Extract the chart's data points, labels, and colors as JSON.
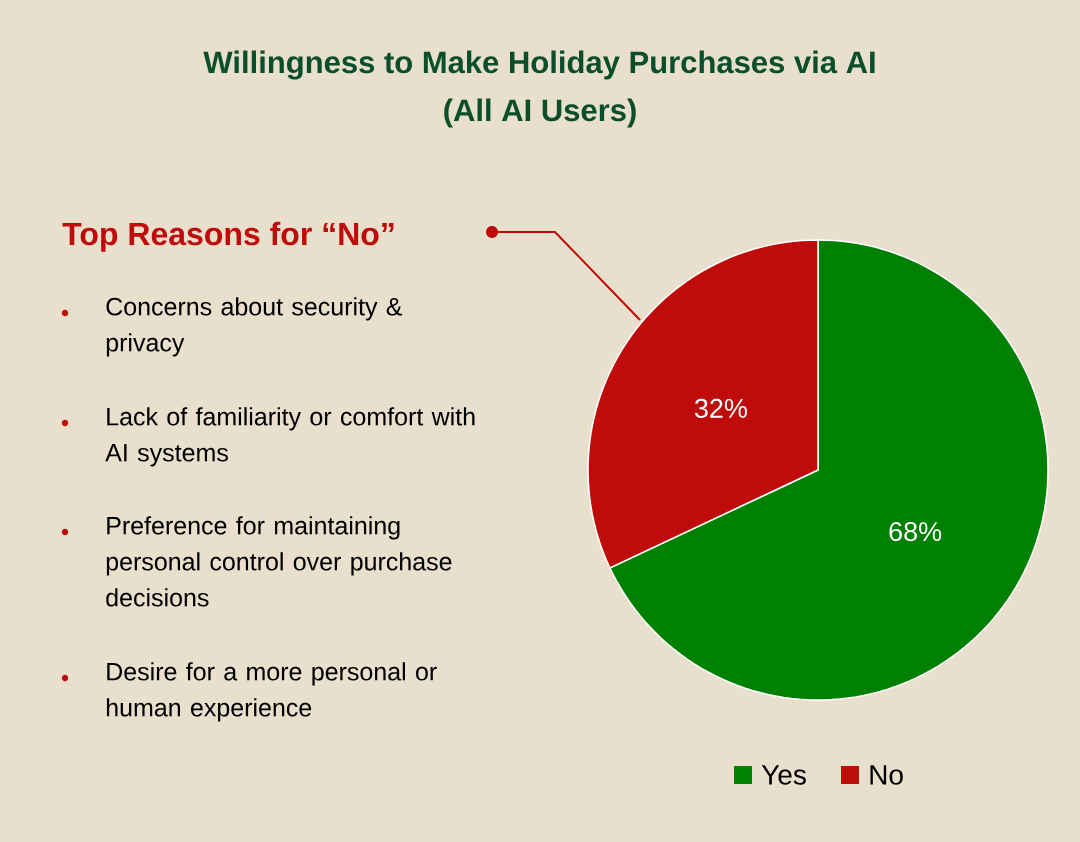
{
  "chart_data": {
    "type": "pie",
    "title": "Willingness to Make Holiday Purchases via AI",
    "subtitle": "(All AI Users)",
    "categories": [
      "Yes",
      "No"
    ],
    "values": [
      68,
      32
    ],
    "colors": [
      "#008000",
      "#c00b0b"
    ],
    "value_labels": [
      "68%",
      "32%"
    ],
    "legend": "bottom right",
    "annotations": [
      "Top Reasons for “No”",
      "Concerns about security & privacy",
      "Lack of familiarity or comfort with AI systems",
      "Preference for maintaining personal control over purchase decisions",
      "Desire for a more personal or human experience"
    ]
  }
}
